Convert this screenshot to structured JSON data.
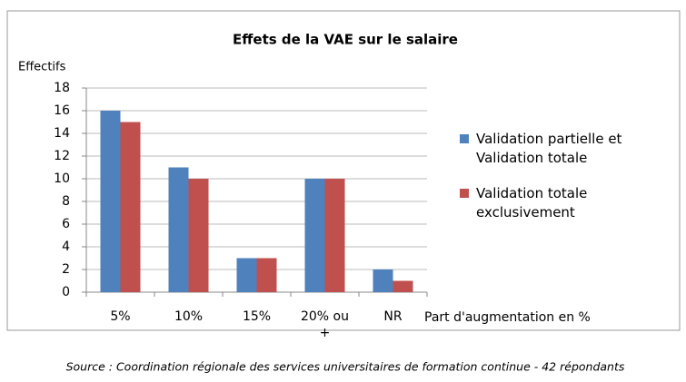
{
  "chart_data": {
    "type": "bar",
    "title": "Effets de la VAE sur le salaire",
    "y_label": "Effectifs",
    "x_label": "Part d'augmentation en %",
    "source": "Source : Coordination régionale des services universitaires de formation continue - 42 répondants",
    "categories": [
      "5%",
      "10%",
      "15%",
      "20% ou +",
      "NR"
    ],
    "series": [
      {
        "name": "Validation partielle et Validation totale",
        "color": "#4f81bd",
        "values": [
          16,
          11,
          3,
          10,
          2
        ]
      },
      {
        "name": "Validation totale exclusivement",
        "color": "#c0504d",
        "values": [
          15,
          10,
          3,
          10,
          1
        ]
      }
    ],
    "ylim": [
      0,
      18
    ],
    "yticks": [
      0,
      2,
      4,
      6,
      8,
      10,
      12,
      14,
      16,
      18
    ],
    "grid": true,
    "legend": "right"
  }
}
